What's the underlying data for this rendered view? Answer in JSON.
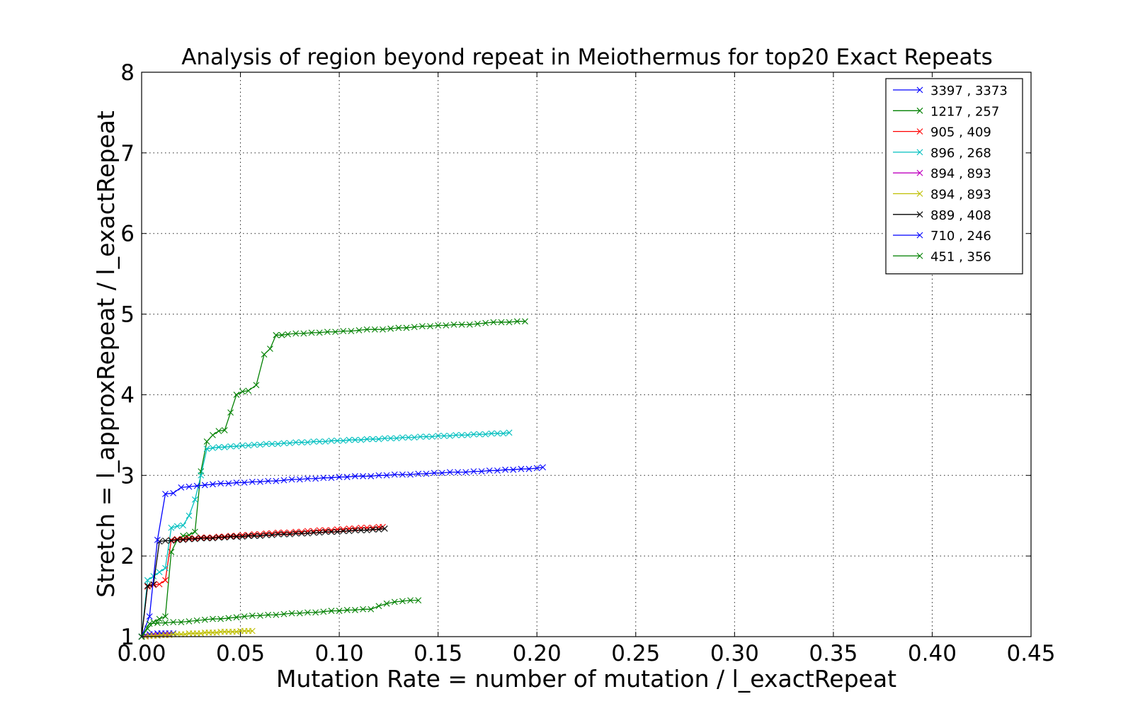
{
  "chart_data": {
    "type": "line",
    "title": "Analysis of region beyond repeat in Meiothermus for top20 Exact Repeats",
    "xlabel": "Mutation Rate = number of mutation / l_exactRepeat",
    "ylabel": "Stretch =  l_approxRepeat / l_exactRepeat",
    "xlim": [
      0,
      0.45
    ],
    "ylim": [
      1,
      8
    ],
    "xticks": [
      0.0,
      0.05,
      0.1,
      0.15,
      0.2,
      0.25,
      0.3,
      0.35,
      0.4,
      0.45
    ],
    "yticks": [
      1,
      2,
      3,
      4,
      5,
      6,
      7,
      8
    ],
    "xtick_labels": [
      "0.00",
      "0.05",
      "0.10",
      "0.15",
      "0.20",
      "0.25",
      "0.30",
      "0.35",
      "0.40",
      "0.45"
    ],
    "ytick_labels": [
      "1",
      "2",
      "3",
      "4",
      "5",
      "6",
      "7",
      "8"
    ],
    "grid": true,
    "legend_position": "top-right",
    "marker": "x",
    "series": [
      {
        "name": "3397 , 3373",
        "color": "#0000ff",
        "x": [
          0.0,
          0.002,
          0.004,
          0.006,
          0.008,
          0.01,
          0.012,
          0.014,
          0.016
        ],
        "y": [
          1.0,
          1.02,
          1.03,
          1.03,
          1.04,
          1.04,
          1.04,
          1.04,
          1.04
        ]
      },
      {
        "name": "1217 , 257",
        "color": "#008000",
        "x": [
          0.0,
          0.003,
          0.006,
          0.009,
          0.012,
          0.015,
          0.018,
          0.021,
          0.024,
          0.027,
          0.03,
          0.033,
          0.036,
          0.039,
          0.042,
          0.045,
          0.048,
          0.051,
          0.054,
          0.058,
          0.062,
          0.065,
          0.068,
          0.071,
          0.074,
          0.078,
          0.082,
          0.086,
          0.09,
          0.094,
          0.098,
          0.102,
          0.106,
          0.11,
          0.114,
          0.118,
          0.122,
          0.126,
          0.13,
          0.134,
          0.138,
          0.142,
          0.146,
          0.15,
          0.154,
          0.158,
          0.162,
          0.166,
          0.17,
          0.174,
          0.178,
          0.182,
          0.186,
          0.19,
          0.194
        ],
        "y": [
          1.0,
          1.1,
          1.18,
          1.22,
          1.25,
          2.05,
          2.2,
          2.25,
          2.26,
          2.3,
          3.05,
          3.42,
          3.5,
          3.55,
          3.56,
          3.78,
          4.0,
          4.04,
          4.05,
          4.12,
          4.5,
          4.57,
          4.74,
          4.74,
          4.75,
          4.76,
          4.76,
          4.77,
          4.77,
          4.78,
          4.78,
          4.79,
          4.79,
          4.8,
          4.81,
          4.81,
          4.81,
          4.82,
          4.83,
          4.83,
          4.84,
          4.85,
          4.85,
          4.86,
          4.86,
          4.87,
          4.87,
          4.87,
          4.88,
          4.89,
          4.9,
          4.9,
          4.9,
          4.91,
          4.91
        ]
      },
      {
        "name": "905 , 409",
        "color": "#ff0000",
        "x": [
          0.0,
          0.003,
          0.006,
          0.009,
          0.012,
          0.015,
          0.018,
          0.021,
          0.024,
          0.027,
          0.03,
          0.033,
          0.036,
          0.039,
          0.042,
          0.045,
          0.048,
          0.051,
          0.054,
          0.057,
          0.06,
          0.063,
          0.066,
          0.069,
          0.072,
          0.075,
          0.078,
          0.081,
          0.084,
          0.087,
          0.09,
          0.093,
          0.096,
          0.099,
          0.102,
          0.105,
          0.108,
          0.111,
          0.114,
          0.117,
          0.12,
          0.122
        ],
        "y": [
          1.0,
          1.62,
          1.64,
          1.65,
          1.7,
          2.2,
          2.21,
          2.21,
          2.22,
          2.22,
          2.23,
          2.23,
          2.23,
          2.24,
          2.24,
          2.25,
          2.25,
          2.26,
          2.26,
          2.27,
          2.27,
          2.28,
          2.28,
          2.29,
          2.29,
          2.29,
          2.3,
          2.3,
          2.31,
          2.31,
          2.32,
          2.32,
          2.32,
          2.33,
          2.33,
          2.34,
          2.34,
          2.35,
          2.35,
          2.35,
          2.36,
          2.36
        ]
      },
      {
        "name": "896 , 268",
        "color": "#00bfbf",
        "x": [
          0.0,
          0.003,
          0.006,
          0.009,
          0.012,
          0.015,
          0.018,
          0.021,
          0.024,
          0.027,
          0.03,
          0.033,
          0.036,
          0.039,
          0.042,
          0.045,
          0.048,
          0.051,
          0.054,
          0.057,
          0.06,
          0.063,
          0.066,
          0.069,
          0.072,
          0.075,
          0.078,
          0.081,
          0.084,
          0.087,
          0.09,
          0.093,
          0.096,
          0.099,
          0.102,
          0.105,
          0.108,
          0.111,
          0.114,
          0.117,
          0.12,
          0.123,
          0.126,
          0.129,
          0.132,
          0.135,
          0.138,
          0.141,
          0.144,
          0.147,
          0.15,
          0.153,
          0.156,
          0.159,
          0.162,
          0.165,
          0.168,
          0.171,
          0.174,
          0.177,
          0.18,
          0.183,
          0.186
        ],
        "y": [
          1.0,
          1.7,
          1.75,
          1.8,
          1.85,
          2.35,
          2.37,
          2.38,
          2.5,
          2.7,
          3.0,
          3.33,
          3.34,
          3.35,
          3.35,
          3.36,
          3.36,
          3.37,
          3.37,
          3.38,
          3.38,
          3.39,
          3.39,
          3.39,
          3.4,
          3.4,
          3.41,
          3.41,
          3.41,
          3.42,
          3.42,
          3.42,
          3.43,
          3.43,
          3.43,
          3.44,
          3.44,
          3.44,
          3.45,
          3.45,
          3.45,
          3.46,
          3.46,
          3.46,
          3.47,
          3.47,
          3.47,
          3.48,
          3.48,
          3.48,
          3.49,
          3.49,
          3.49,
          3.5,
          3.5,
          3.5,
          3.51,
          3.51,
          3.51,
          3.52,
          3.52,
          3.52,
          3.53
        ]
      },
      {
        "name": "894 , 893",
        "color": "#bf00bf",
        "x": [
          0.0,
          0.002,
          0.004,
          0.006,
          0.008,
          0.01,
          0.012,
          0.014
        ],
        "y": [
          1.0,
          1.01,
          1.01,
          1.02,
          1.02,
          1.02,
          1.03,
          1.03
        ]
      },
      {
        "name": "894 , 893",
        "color": "#bfbf00",
        "x": [
          0.0,
          0.002,
          0.004,
          0.006,
          0.008,
          0.01,
          0.012,
          0.014,
          0.016,
          0.018,
          0.02,
          0.022,
          0.024,
          0.026,
          0.028,
          0.03,
          0.032,
          0.034,
          0.036,
          0.038,
          0.04,
          0.042,
          0.044,
          0.046,
          0.048,
          0.05,
          0.052,
          0.054,
          0.056
        ],
        "y": [
          1.0,
          1.0,
          1.01,
          1.01,
          1.01,
          1.02,
          1.02,
          1.02,
          1.03,
          1.03,
          1.03,
          1.03,
          1.04,
          1.04,
          1.04,
          1.04,
          1.05,
          1.05,
          1.05,
          1.05,
          1.06,
          1.06,
          1.06,
          1.06,
          1.06,
          1.07,
          1.07,
          1.07,
          1.07
        ]
      },
      {
        "name": "889 , 408",
        "color": "#000000",
        "x": [
          0.0,
          0.003,
          0.006,
          0.009,
          0.012,
          0.015,
          0.018,
          0.021,
          0.024,
          0.027,
          0.03,
          0.033,
          0.036,
          0.039,
          0.042,
          0.045,
          0.048,
          0.051,
          0.054,
          0.057,
          0.06,
          0.063,
          0.066,
          0.069,
          0.072,
          0.075,
          0.078,
          0.081,
          0.084,
          0.087,
          0.09,
          0.093,
          0.096,
          0.099,
          0.102,
          0.105,
          0.108,
          0.111,
          0.114,
          0.117,
          0.12,
          0.123
        ],
        "y": [
          1.0,
          1.63,
          1.65,
          2.18,
          2.19,
          2.19,
          2.2,
          2.2,
          2.21,
          2.21,
          2.22,
          2.22,
          2.22,
          2.23,
          2.23,
          2.24,
          2.24,
          2.24,
          2.25,
          2.25,
          2.25,
          2.26,
          2.26,
          2.27,
          2.27,
          2.27,
          2.28,
          2.28,
          2.28,
          2.29,
          2.29,
          2.3,
          2.3,
          2.3,
          2.31,
          2.31,
          2.32,
          2.32,
          2.32,
          2.33,
          2.33,
          2.34
        ]
      },
      {
        "name": "710 , 246",
        "color": "#0000ff",
        "x": [
          0.0,
          0.004,
          0.008,
          0.012,
          0.016,
          0.02,
          0.024,
          0.028,
          0.032,
          0.036,
          0.04,
          0.044,
          0.048,
          0.052,
          0.056,
          0.06,
          0.064,
          0.068,
          0.072,
          0.076,
          0.08,
          0.084,
          0.088,
          0.092,
          0.096,
          0.1,
          0.104,
          0.108,
          0.112,
          0.116,
          0.12,
          0.124,
          0.128,
          0.132,
          0.136,
          0.14,
          0.144,
          0.148,
          0.152,
          0.156,
          0.16,
          0.164,
          0.168,
          0.172,
          0.176,
          0.18,
          0.184,
          0.188,
          0.192,
          0.196,
          0.2,
          0.203
        ],
        "y": [
          1.0,
          1.25,
          2.2,
          2.77,
          2.78,
          2.85,
          2.86,
          2.87,
          2.88,
          2.89,
          2.9,
          2.9,
          2.91,
          2.91,
          2.92,
          2.92,
          2.93,
          2.93,
          2.94,
          2.95,
          2.95,
          2.96,
          2.96,
          2.97,
          2.97,
          2.98,
          2.98,
          2.99,
          2.99,
          2.99,
          3.0,
          3.0,
          3.01,
          3.01,
          3.01,
          3.02,
          3.02,
          3.03,
          3.03,
          3.04,
          3.04,
          3.04,
          3.05,
          3.05,
          3.06,
          3.06,
          3.07,
          3.07,
          3.08,
          3.08,
          3.09,
          3.1
        ]
      },
      {
        "name": "451 , 356",
        "color": "#008000",
        "x": [
          0.0,
          0.004,
          0.008,
          0.012,
          0.016,
          0.02,
          0.024,
          0.028,
          0.032,
          0.036,
          0.04,
          0.044,
          0.048,
          0.052,
          0.056,
          0.06,
          0.064,
          0.068,
          0.072,
          0.076,
          0.08,
          0.084,
          0.088,
          0.092,
          0.096,
          0.1,
          0.104,
          0.108,
          0.112,
          0.116,
          0.12,
          0.124,
          0.128,
          0.132,
          0.136,
          0.14
        ],
        "y": [
          1.0,
          1.16,
          1.17,
          1.17,
          1.18,
          1.18,
          1.19,
          1.2,
          1.21,
          1.22,
          1.22,
          1.23,
          1.24,
          1.25,
          1.26,
          1.26,
          1.27,
          1.27,
          1.28,
          1.29,
          1.29,
          1.3,
          1.3,
          1.31,
          1.32,
          1.32,
          1.33,
          1.33,
          1.34,
          1.34,
          1.38,
          1.41,
          1.43,
          1.44,
          1.45,
          1.45
        ]
      }
    ]
  }
}
